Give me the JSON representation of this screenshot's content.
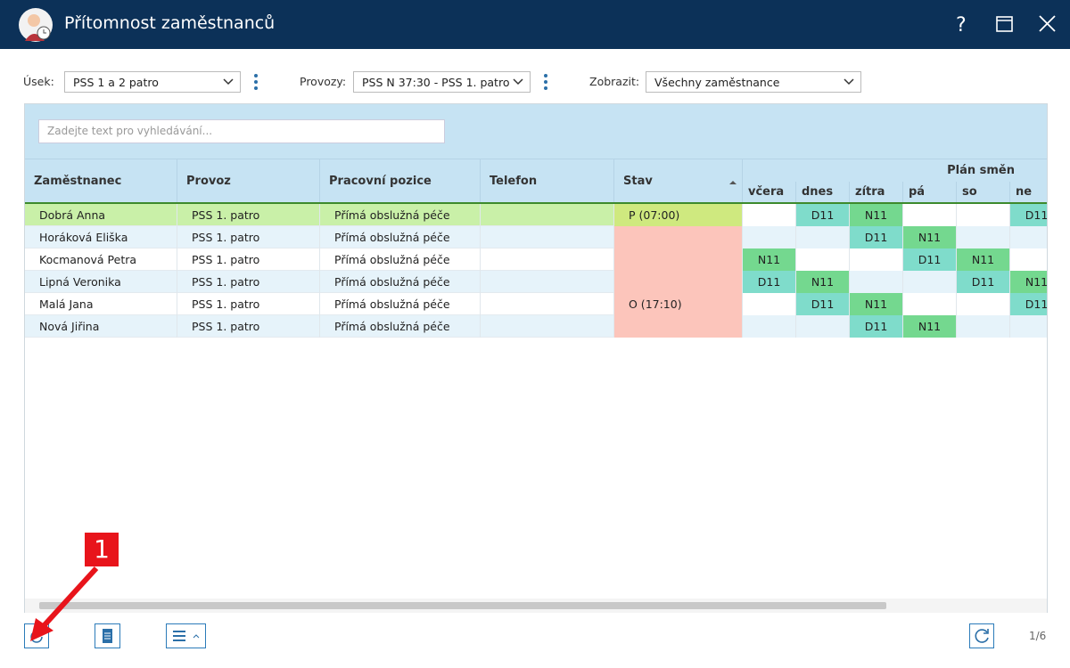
{
  "window": {
    "title": "Přítomnost zaměstnanců"
  },
  "filters": [
    {
      "label": "Úsek:",
      "value": "PSS 1 a 2 patro"
    },
    {
      "label": "Provozy:",
      "value": "PSS N 37:30 - PSS 1. patro"
    },
    {
      "label": "Zobrazit:",
      "value": "Všechny zaměstnance"
    }
  ],
  "search": {
    "placeholder": "Zadejte text pro vyhledávání..."
  },
  "table": {
    "columns": [
      "Zaměstnanec",
      "Provoz",
      "Pracovní pozice",
      "Telefon",
      "Stav"
    ],
    "plan_header": "Plán směn",
    "days": [
      "včera",
      "dnes",
      "zítra",
      "pá",
      "so",
      "ne"
    ],
    "rows": [
      {
        "name": "Dobrá Anna",
        "provoz": "PSS 1. patro",
        "pozice": "Přímá obslužná péče",
        "stav": "P (07:00)",
        "stav_color": "#cfe97f",
        "shifts": [
          null,
          {
            "code": "D11",
            "color": "#7fdccb"
          },
          {
            "code": "N11",
            "color": "#74d88f"
          },
          null,
          null,
          {
            "code": "D11",
            "color": "#7fdccb"
          }
        ]
      },
      {
        "name": "Horáková Eliška",
        "provoz": "PSS 1. patro",
        "pozice": "Přímá obslužná péče",
        "stav": null,
        "stav_color": "#fcc5bb",
        "shifts": [
          null,
          null,
          {
            "code": "D11",
            "color": "#7fdccb"
          },
          {
            "code": "N11",
            "color": "#74d88f"
          },
          null,
          null
        ]
      },
      {
        "name": "Kocmanová Petra",
        "provoz": "PSS 1. patro",
        "pozice": "Přímá obslužná péče",
        "stav": null,
        "stav_color": "#fcc5bb",
        "shifts": [
          {
            "code": "N11",
            "color": "#74d88f"
          },
          null,
          null,
          {
            "code": "D11",
            "color": "#7fdccb"
          },
          {
            "code": "N11",
            "color": "#74d88f"
          },
          null
        ]
      },
      {
        "name": "Lipná Veronika",
        "provoz": "PSS 1. patro",
        "pozice": "Přímá obslužná péče",
        "stav": null,
        "stav_color": "#fcc5bb",
        "shifts": [
          {
            "code": "D11",
            "color": "#7fdccb"
          },
          {
            "code": "N11",
            "color": "#74d88f"
          },
          null,
          null,
          {
            "code": "D11",
            "color": "#7fdccb"
          },
          {
            "code": "N11",
            "color": "#74d88f"
          }
        ]
      },
      {
        "name": "Malá Jana",
        "provoz": "PSS 1. patro",
        "pozice": "Přímá obslužná péče",
        "stav": "O (17:10)",
        "stav_color": "#fcc5bb",
        "shifts": [
          null,
          {
            "code": "D11",
            "color": "#7fdccb"
          },
          {
            "code": "N11",
            "color": "#74d88f"
          },
          null,
          null,
          {
            "code": "D11",
            "color": "#7fdccb"
          }
        ]
      },
      {
        "name": "Nová Jiřina",
        "provoz": "PSS 1. patro",
        "pozice": "Přímá obslužná péče",
        "stav": null,
        "stav_color": "#fcc5bb",
        "shifts": [
          null,
          null,
          {
            "code": "D11",
            "color": "#7fdccb"
          },
          {
            "code": "N11",
            "color": "#74d88f"
          },
          null,
          null
        ]
      }
    ]
  },
  "annotation": "1",
  "pager": "1/6"
}
